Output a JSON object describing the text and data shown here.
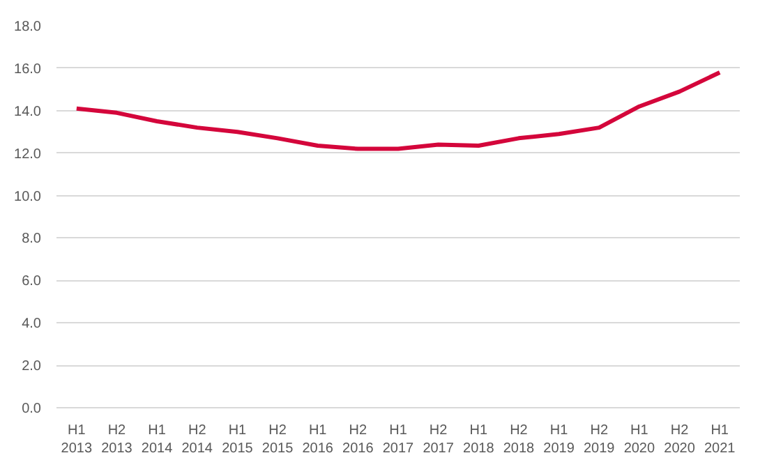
{
  "chart_data": {
    "type": "line",
    "categories": [
      "H1\n2013",
      "H2\n2013",
      "H1\n2014",
      "H2\n2014",
      "H1\n2015",
      "H2\n2015",
      "H1\n2016",
      "H2\n2016",
      "H1\n2017",
      "H2\n2017",
      "H1\n2018",
      "H2\n2018",
      "H1\n2019",
      "H2\n2019",
      "H1\n2020",
      "H2\n2020",
      "H1\n2021"
    ],
    "series": [
      {
        "color": "#d4063b",
        "values": [
          14.1,
          13.9,
          13.5,
          13.2,
          13.0,
          12.7,
          12.35,
          12.2,
          12.2,
          12.4,
          12.35,
          12.7,
          12.9,
          13.2,
          14.2,
          14.9,
          15.8
        ]
      }
    ],
    "ylim": [
      0,
      18
    ],
    "yticks": [
      {
        "value": 0,
        "label": "0.0"
      },
      {
        "value": 2,
        "label": "2.0"
      },
      {
        "value": 4,
        "label": "4.0"
      },
      {
        "value": 6,
        "label": "6.0"
      },
      {
        "value": 8,
        "label": "8.0"
      },
      {
        "value": 10,
        "label": "10.0"
      },
      {
        "value": 12,
        "label": "12.0"
      },
      {
        "value": 14,
        "label": "14.0"
      },
      {
        "value": 16,
        "label": "16.0"
      },
      {
        "value": 18,
        "label": "18.0"
      }
    ],
    "grid": "y",
    "marker": "none",
    "line_style": "solid"
  }
}
